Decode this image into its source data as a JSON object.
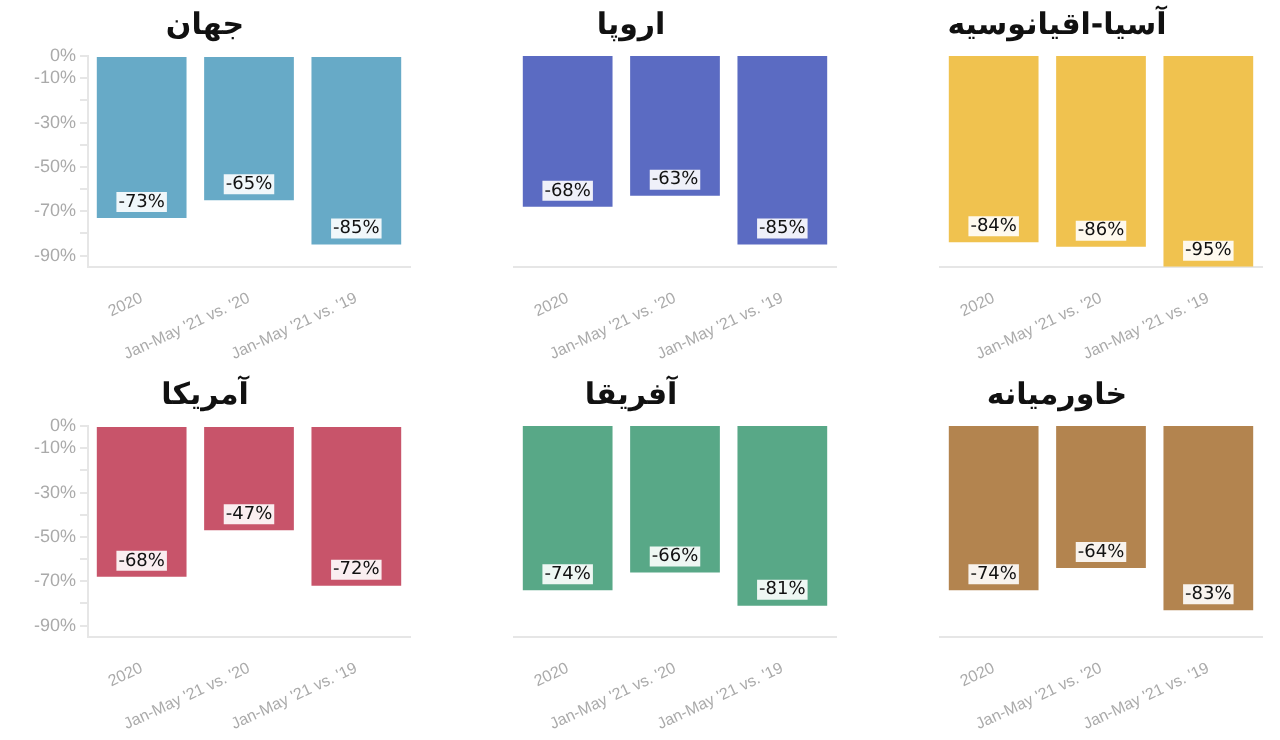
{
  "chart_data": [
    {
      "type": "bar",
      "title": "جهان",
      "categories": [
        "2020",
        "Jan-May '21 vs. '20",
        "Jan-May '21 vs. '19"
      ],
      "values": [
        -73,
        -65,
        -85
      ],
      "value_labels": [
        "-73%",
        "-65%",
        "-85%"
      ],
      "color": "#67aac7",
      "ylim": [
        -95,
        0
      ],
      "yticks": [
        {
          "value": 0,
          "label": "0%"
        },
        {
          "value": -10,
          "label": "-10%"
        },
        {
          "value": -20,
          "label": null
        },
        {
          "value": -30,
          "label": "-30%"
        },
        {
          "value": -40,
          "label": null
        },
        {
          "value": -50,
          "label": "-50%"
        },
        {
          "value": -60,
          "label": null
        },
        {
          "value": -70,
          "label": "-70%"
        },
        {
          "value": -80,
          "label": null
        },
        {
          "value": -90,
          "label": "-90%"
        }
      ],
      "grid": false,
      "legend": false
    },
    {
      "type": "bar",
      "title": "اروپا",
      "categories": [
        "2020",
        "Jan-May '21 vs. '20",
        "Jan-May '21 vs. '19"
      ],
      "values": [
        -68,
        -63,
        -85
      ],
      "value_labels": [
        "-68%",
        "-63%",
        "-85%"
      ],
      "color": "#5b6bc2",
      "ylim": [
        -95,
        0
      ],
      "grid": false,
      "legend": false,
      "tick_labels": "x"
    },
    {
      "type": "bar",
      "title": "آسیا-اقیانوسیه",
      "categories": [
        "2020",
        "Jan-May '21 vs. '20",
        "Jan-May '21 vs. '19"
      ],
      "values": [
        -84,
        -86,
        -95
      ],
      "value_labels": [
        "-84%",
        "-86%",
        "-95%"
      ],
      "color": "#f0c24f",
      "ylim": [
        -95,
        0
      ],
      "grid": false,
      "legend": false,
      "tick_labels": "x"
    },
    {
      "type": "bar",
      "title": "آمریکا",
      "categories": [
        "2020",
        "Jan-May '21 vs. '20",
        "Jan-May '21 vs. '19"
      ],
      "values": [
        -68,
        -47,
        -72
      ],
      "value_labels": [
        "-68%",
        "-47%",
        "-72%"
      ],
      "color": "#c8546a",
      "ylim": [
        -95,
        0
      ],
      "yticks": [
        {
          "value": 0,
          "label": "0%"
        },
        {
          "value": -10,
          "label": "-10%"
        },
        {
          "value": -20,
          "label": null
        },
        {
          "value": -30,
          "label": "-30%"
        },
        {
          "value": -40,
          "label": null
        },
        {
          "value": -50,
          "label": "-50%"
        },
        {
          "value": -60,
          "label": null
        },
        {
          "value": -70,
          "label": "-70%"
        },
        {
          "value": -80,
          "label": null
        },
        {
          "value": -90,
          "label": "-90%"
        }
      ],
      "grid": false,
      "legend": false
    },
    {
      "type": "bar",
      "title": "آفریقا",
      "categories": [
        "2020",
        "Jan-May '21 vs. '20",
        "Jan-May '21 vs. '19"
      ],
      "values": [
        -74,
        -66,
        -81
      ],
      "value_labels": [
        "-74%",
        "-66%",
        "-81%"
      ],
      "color": "#58a887",
      "ylim": [
        -95,
        0
      ],
      "grid": false,
      "legend": false,
      "tick_labels": "x"
    },
    {
      "type": "bar",
      "title": "خاورمیانه",
      "categories": [
        "2020",
        "Jan-May '21 vs. '20",
        "Jan-May '21 vs. '19"
      ],
      "values": [
        -74,
        -64,
        -83
      ],
      "value_labels": [
        "-74%",
        "-64%",
        "-83%"
      ],
      "color": "#b3844f",
      "ylim": [
        -95,
        0
      ],
      "grid": false,
      "legend": false,
      "tick_labels": "x"
    }
  ]
}
